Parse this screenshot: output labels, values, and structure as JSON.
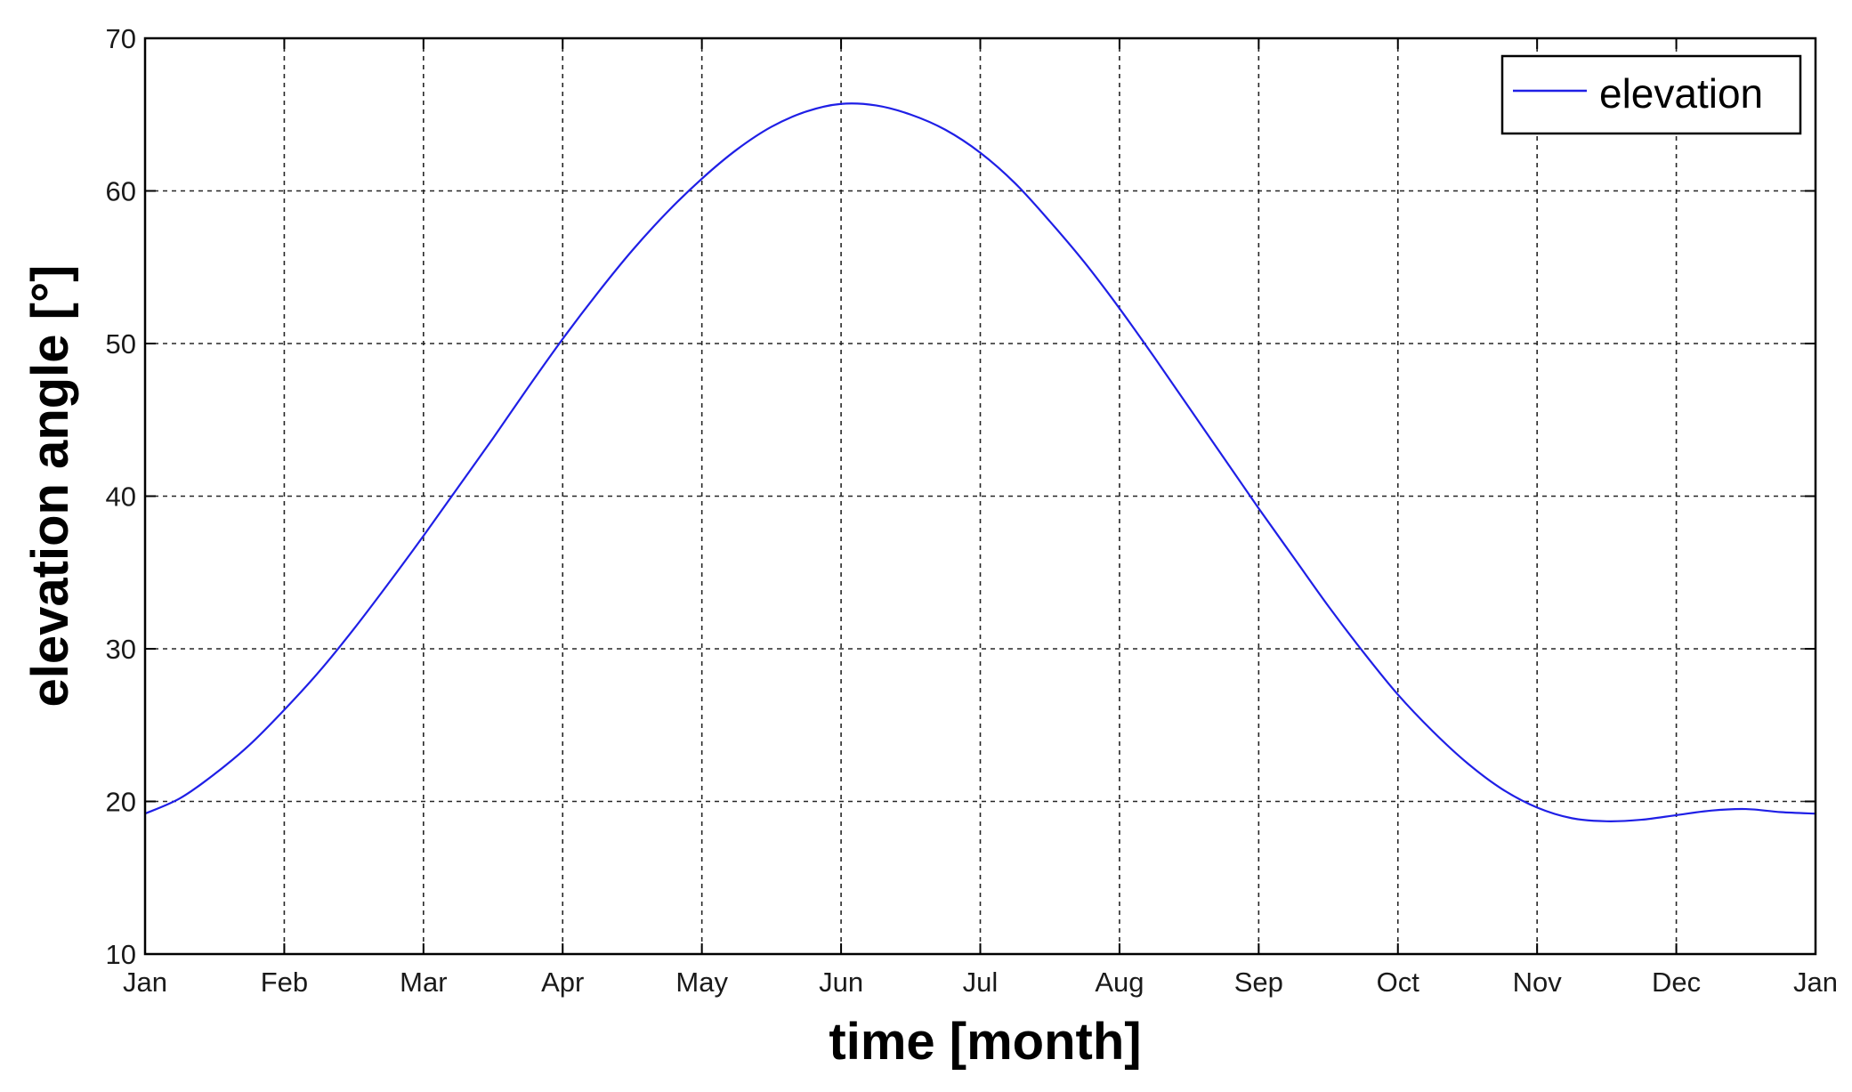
{
  "chart_data": {
    "type": "line",
    "title": "",
    "xlabel": "time [month]",
    "ylabel": "elevation angle [°]",
    "x_tick_labels": [
      "Jan",
      "Feb",
      "Mar",
      "Apr",
      "May",
      "Jun",
      "Jul",
      "Aug",
      "Sep",
      "Oct",
      "Nov",
      "Dec",
      "Jan"
    ],
    "x_unit": "month",
    "xlim": [
      0,
      12
    ],
    "ylim": [
      10,
      70
    ],
    "y_ticks": [
      10,
      20,
      30,
      40,
      50,
      60,
      70
    ],
    "grid": true,
    "legend_position": "top-right",
    "series": [
      {
        "name": "elevation",
        "color": "#1f1fe6",
        "x": [
          0,
          0.25,
          0.5,
          0.75,
          1,
          1.25,
          1.5,
          1.75,
          2,
          2.25,
          2.5,
          2.75,
          3,
          3.25,
          3.5,
          3.75,
          4,
          4.25,
          4.5,
          4.75,
          5,
          5.25,
          5.5,
          5.75,
          6,
          6.25,
          6.5,
          6.75,
          7,
          7.25,
          7.5,
          7.75,
          8,
          8.25,
          8.5,
          8.75,
          9,
          9.25,
          9.5,
          9.75,
          10,
          10.25,
          10.5,
          10.75,
          11,
          11.25,
          11.5,
          11.75,
          12
        ],
        "y": [
          19.2,
          20.2,
          21.8,
          23.7,
          26.0,
          28.5,
          31.3,
          34.3,
          37.4,
          40.6,
          43.8,
          47.1,
          50.3,
          53.3,
          56.1,
          58.6,
          60.8,
          62.7,
          64.2,
          65.2,
          65.7,
          65.6,
          65.0,
          64.0,
          62.5,
          60.5,
          58.0,
          55.3,
          52.3,
          49.1,
          45.8,
          42.5,
          39.2,
          36.0,
          32.8,
          29.8,
          27.0,
          24.6,
          22.5,
          20.8,
          19.6,
          18.9,
          18.7,
          18.8,
          19.1,
          19.4,
          19.5,
          19.3,
          19.2
        ]
      }
    ]
  }
}
